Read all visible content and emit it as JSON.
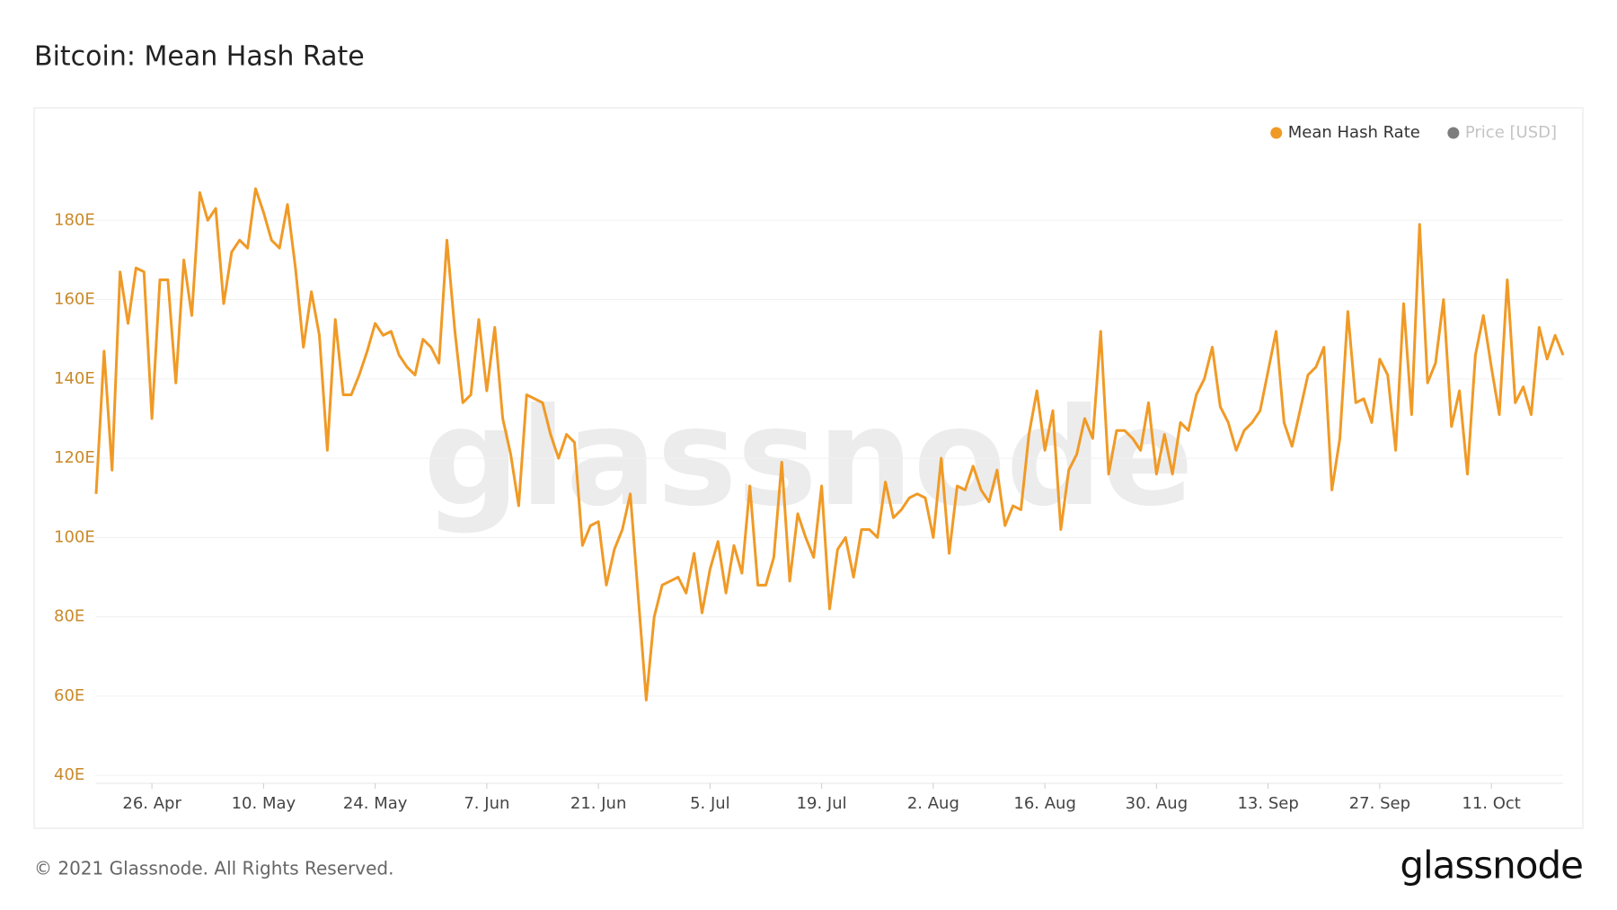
{
  "chart_data": {
    "type": "line",
    "title": "Bitcoin: Mean Hash Rate",
    "footer": "© 2021 Glassnode. All Rights Reserved.",
    "logo": "glassnode",
    "watermark": "glassnode",
    "x": [
      "19. Apr",
      "20. Apr",
      "21. Apr",
      "22. Apr",
      "23. Apr",
      "24. Apr",
      "25. Apr",
      "26. Apr",
      "27. Apr",
      "28. Apr",
      "29. Apr",
      "30. Apr",
      "1. May",
      "2. May",
      "3. May",
      "4. May",
      "5. May",
      "6. May",
      "7. May",
      "8. May",
      "9. May",
      "10. May",
      "11. May",
      "12. May",
      "13. May",
      "14. May",
      "15. May",
      "16. May",
      "17. May",
      "18. May",
      "19. May",
      "20. May",
      "21. May",
      "22. May",
      "23. May",
      "24. May",
      "25. May",
      "26. May",
      "27. May",
      "28. May",
      "29. May",
      "30. May",
      "31. May",
      "1. Jun",
      "2. Jun",
      "3. Jun",
      "4. Jun",
      "5. Jun",
      "6. Jun",
      "7. Jun",
      "8. Jun",
      "9. Jun",
      "10. Jun",
      "11. Jun",
      "12. Jun",
      "13. Jun",
      "14. Jun",
      "15. Jun",
      "16. Jun",
      "17. Jun",
      "18. Jun",
      "19. Jun",
      "20. Jun",
      "21. Jun",
      "22. Jun",
      "23. Jun",
      "24. Jun",
      "25. Jun",
      "26. Jun",
      "27. Jun",
      "28. Jun",
      "29. Jun",
      "30. Jun",
      "1. Jul",
      "2. Jul",
      "3. Jul",
      "4. Jul",
      "5. Jul",
      "6. Jul",
      "7. Jul",
      "8. Jul",
      "9. Jul",
      "10. Jul",
      "11. Jul",
      "12. Jul",
      "13. Jul",
      "14. Jul",
      "15. Jul",
      "16. Jul",
      "17. Jul",
      "18. Jul",
      "19. Jul",
      "20. Jul",
      "21. Jul",
      "22. Jul",
      "23. Jul",
      "24. Jul",
      "25. Jul",
      "26. Jul",
      "27. Jul",
      "28. Jul",
      "29. Jul",
      "30. Jul",
      "31. Jul",
      "1. Aug",
      "2. Aug",
      "3. Aug",
      "4. Aug",
      "5. Aug",
      "6. Aug",
      "7. Aug",
      "8. Aug",
      "9. Aug",
      "10. Aug",
      "11. Aug",
      "12. Aug",
      "13. Aug",
      "14. Aug",
      "15. Aug",
      "16. Aug",
      "17. Aug",
      "18. Aug",
      "19. Aug",
      "20. Aug",
      "21. Aug",
      "22. Aug",
      "23. Aug",
      "24. Aug",
      "25. Aug",
      "26. Aug",
      "27. Aug",
      "28. Aug",
      "29. Aug",
      "30. Aug",
      "31. Aug",
      "1. Sep",
      "2. Sep",
      "3. Sep",
      "4. Sep",
      "5. Sep",
      "6. Sep",
      "7. Sep",
      "8. Sep",
      "9. Sep",
      "10. Sep",
      "11. Sep",
      "12. Sep",
      "13. Sep",
      "14. Sep",
      "15. Sep",
      "16. Sep",
      "17. Sep",
      "18. Sep",
      "19. Sep",
      "20. Sep",
      "21. Sep",
      "22. Sep",
      "23. Sep",
      "24. Sep",
      "25. Sep",
      "26. Sep",
      "27. Sep",
      "28. Sep",
      "29. Sep",
      "30. Sep",
      "1. Oct",
      "2. Oct",
      "3. Oct",
      "4. Oct",
      "5. Oct",
      "6. Oct",
      "7. Oct",
      "8. Oct",
      "9. Oct",
      "10. Oct",
      "11. Oct",
      "12. Oct",
      "13. Oct",
      "14. Oct",
      "15. Oct",
      "16. Oct",
      "17. Oct",
      "18. Oct",
      "19. Oct",
      "20. Oct"
    ],
    "series": [
      {
        "name": "Mean Hash Rate",
        "color": "#f09a26",
        "values": [
          111,
          147,
          117,
          167,
          154,
          168,
          167,
          130,
          165,
          165,
          139,
          170,
          156,
          187,
          180,
          183,
          159,
          172,
          175,
          173,
          188,
          182,
          175,
          173,
          184,
          168,
          148,
          162,
          151,
          122,
          155,
          136,
          136,
          141,
          147,
          154,
          151,
          152,
          146,
          143,
          141,
          150,
          148,
          144,
          175,
          152,
          134,
          136,
          155,
          137,
          153,
          130,
          121,
          108,
          136,
          135,
          134,
          126,
          120,
          126,
          124,
          98,
          103,
          104,
          88,
          97,
          102,
          111,
          85,
          59,
          80,
          88,
          89,
          90,
          86,
          96,
          81,
          92,
          99,
          86,
          98,
          91,
          113,
          88,
          88,
          95,
          119,
          89,
          106,
          100,
          95,
          113,
          82,
          97,
          100,
          90,
          102,
          102,
          100,
          114,
          105,
          107,
          110,
          111,
          110,
          100,
          120,
          96,
          113,
          112,
          118,
          112,
          109,
          117,
          103,
          108,
          107,
          126,
          137,
          122,
          132,
          102,
          117,
          121,
          130,
          125,
          152,
          116,
          127,
          127,
          125,
          122,
          134,
          116,
          126,
          116,
          129,
          127,
          136,
          140,
          148,
          133,
          129,
          122,
          127,
          129,
          132,
          142,
          152,
          129,
          123,
          132,
          141,
          143,
          148,
          112,
          125,
          157,
          134,
          135,
          129,
          145,
          141,
          122,
          159,
          131,
          179,
          139,
          144,
          160,
          128,
          137,
          116,
          146,
          156,
          143,
          131,
          165,
          134,
          138,
          131,
          153,
          145,
          151,
          146
        ]
      }
    ],
    "inactive_series": [
      {
        "name": "Price [USD]",
        "color": "#7d7d7d"
      }
    ],
    "xticks": [
      "26. Apr",
      "10. May",
      "24. May",
      "7. Jun",
      "21. Jun",
      "5. Jul",
      "19. Jul",
      "2. Aug",
      "16. Aug",
      "30. Aug",
      "13. Sep",
      "27. Sep",
      "11. Oct"
    ],
    "ylim": [
      38,
      200
    ],
    "yticks": [
      {
        "value": 40,
        "label": "40E"
      },
      {
        "value": 60,
        "label": "60E"
      },
      {
        "value": 80,
        "label": "80E"
      },
      {
        "value": 100,
        "label": "100E"
      },
      {
        "value": 120,
        "label": "120E"
      },
      {
        "value": 140,
        "label": "140E"
      },
      {
        "value": 160,
        "label": "160E"
      },
      {
        "value": 180,
        "label": "180E"
      }
    ],
    "grid": true,
    "legend": "top-right"
  }
}
